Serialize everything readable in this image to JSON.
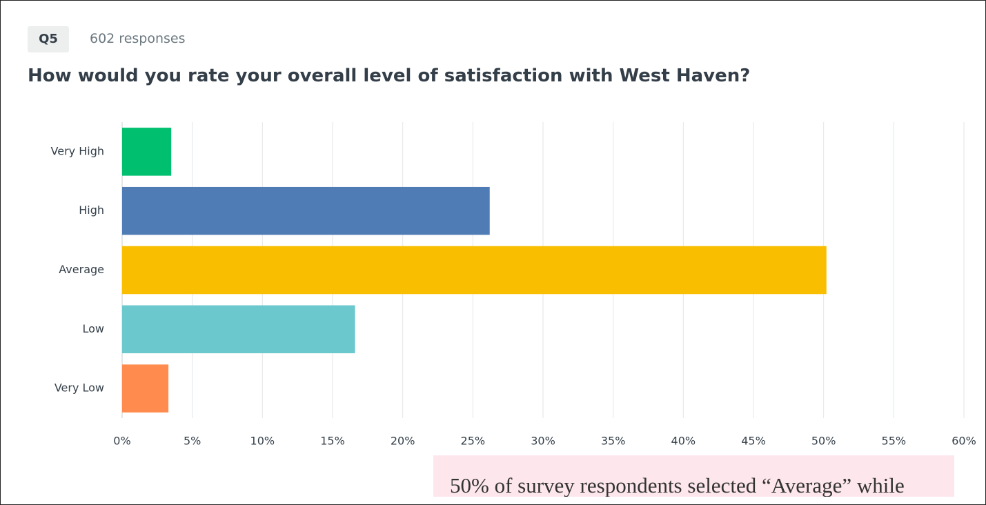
{
  "header": {
    "badge": "Q5",
    "responses": "602 responses"
  },
  "chart_data": {
    "type": "bar",
    "orientation": "horizontal",
    "title": "How would you rate your overall level of satisfaction with West Haven?",
    "categories": [
      "Very High",
      "High",
      "Average",
      "Low",
      "Very Low"
    ],
    "values": [
      3.5,
      26.2,
      50.2,
      16.6,
      3.3
    ],
    "colors": [
      "#00bf6f",
      "#507cb6",
      "#f9be00",
      "#6bc8cd",
      "#ff8b4f"
    ],
    "xlim": [
      0,
      60
    ],
    "xticks": [
      {
        "value": 0,
        "label": "0%"
      },
      {
        "value": 5,
        "label": "5%"
      },
      {
        "value": 10,
        "label": "10%"
      },
      {
        "value": 15,
        "label": "15%"
      },
      {
        "value": 20,
        "label": "20%"
      },
      {
        "value": 25,
        "label": "25%"
      },
      {
        "value": 30,
        "label": "30%"
      },
      {
        "value": 35,
        "label": "35%"
      },
      {
        "value": 40,
        "label": "40%"
      },
      {
        "value": 45,
        "label": "45%"
      },
      {
        "value": 50,
        "label": "50%"
      },
      {
        "value": 55,
        "label": "55%"
      },
      {
        "value": 60,
        "label": "60%"
      }
    ],
    "grid": true
  },
  "note": "50% of survey respondents selected “Average” while"
}
